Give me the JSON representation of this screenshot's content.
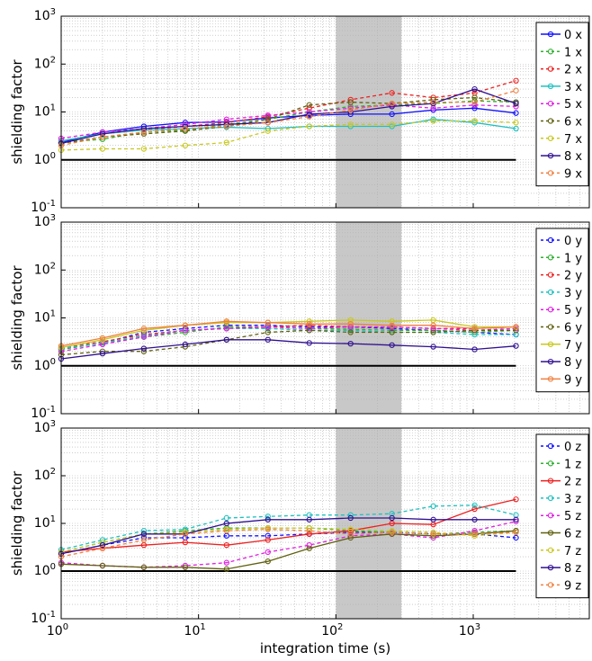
{
  "chart_data": [
    {
      "type": "line",
      "xscale": "log",
      "yscale": "log",
      "xlim": [
        1,
        7000
      ],
      "ylim": [
        0.1,
        1000
      ],
      "ylabel": "shielding factor",
      "xlabel": "",
      "grid": true,
      "legend_position": "right",
      "shaded_region": [
        100,
        300
      ],
      "reference_line": 1,
      "x": [
        1,
        2,
        4,
        8,
        16,
        32,
        64,
        128,
        256,
        512,
        1024,
        2048
      ],
      "series": [
        {
          "name": "0 x",
          "color": "#1010ff",
          "dash": false,
          "values": [
            2.3,
            3.8,
            5.0,
            6.0,
            6.2,
            7.5,
            8.5,
            9.0,
            9.0,
            11.0,
            12.0,
            9.5
          ]
        },
        {
          "name": "1 x",
          "color": "#30b030",
          "dash": true,
          "values": [
            2.3,
            2.7,
            3.8,
            4.2,
            5.5,
            7.0,
            10.0,
            13.0,
            14.0,
            15.0,
            17.0,
            16.0
          ]
        },
        {
          "name": "2 x",
          "color": "#ee2020",
          "dash": true,
          "values": [
            2.5,
            3.5,
            4.2,
            5.0,
            6.0,
            8.0,
            12.0,
            18.0,
            25.0,
            20.0,
            25.0,
            45.0
          ]
        },
        {
          "name": "3 x",
          "color": "#20c0c0",
          "dash": false,
          "values": [
            2.5,
            3.5,
            4.2,
            4.5,
            4.8,
            4.5,
            5.0,
            5.0,
            5.0,
            7.0,
            6.0,
            4.5
          ]
        },
        {
          "name": "5 x",
          "color": "#e020e0",
          "dash": true,
          "values": [
            2.8,
            3.8,
            4.5,
            5.5,
            7.0,
            8.5,
            10.0,
            12.0,
            14.0,
            12.0,
            14.0,
            13.0
          ]
        },
        {
          "name": "6 x",
          "color": "#606010",
          "dash": true,
          "values": [
            2.2,
            3.0,
            3.5,
            4.0,
            5.0,
            7.0,
            14.0,
            16.0,
            15.0,
            18.0,
            20.0,
            16.0
          ]
        },
        {
          "name": "7 x",
          "color": "#c8c820",
          "dash": true,
          "values": [
            1.6,
            1.7,
            1.7,
            2.0,
            2.3,
            4.0,
            5.0,
            5.5,
            5.5,
            6.5,
            6.5,
            6.0
          ]
        },
        {
          "name": "8 x",
          "color": "#301090",
          "dash": false,
          "values": [
            2.2,
            3.5,
            4.5,
            5.0,
            5.5,
            6.0,
            9.0,
            10.0,
            13.0,
            15.0,
            30.0,
            15.0
          ]
        },
        {
          "name": "9 x",
          "color": "#f08040",
          "dash": true,
          "values": [
            2.0,
            3.0,
            3.8,
            4.5,
            5.0,
            6.0,
            8.0,
            11.0,
            15.0,
            16.0,
            16.0,
            28.0
          ]
        }
      ]
    },
    {
      "type": "line",
      "xscale": "log",
      "yscale": "log",
      "xlim": [
        1,
        7000
      ],
      "ylim": [
        0.1,
        1000
      ],
      "ylabel": "shielding factor",
      "xlabel": "",
      "grid": true,
      "legend_position": "right",
      "shaded_region": [
        100,
        300
      ],
      "reference_line": 1,
      "x": [
        1,
        2,
        4,
        8,
        16,
        32,
        64,
        128,
        256,
        512,
        1024,
        2048
      ],
      "series": [
        {
          "name": "0 y",
          "color": "#1010ff",
          "dash": true,
          "values": [
            2.2,
            3.0,
            5.0,
            6.0,
            7.0,
            7.0,
            6.5,
            6.5,
            6.0,
            5.5,
            5.0,
            4.5
          ]
        },
        {
          "name": "1 y",
          "color": "#30b030",
          "dash": true,
          "values": [
            2.2,
            3.0,
            4.0,
            5.0,
            6.5,
            6.5,
            6.0,
            5.8,
            5.5,
            5.5,
            5.0,
            5.5
          ]
        },
        {
          "name": "2 y",
          "color": "#ee2020",
          "dash": true,
          "values": [
            2.4,
            3.2,
            4.5,
            5.5,
            6.0,
            6.5,
            7.0,
            6.5,
            6.5,
            6.0,
            6.0,
            6.5
          ]
        },
        {
          "name": "3 y",
          "color": "#20c0c0",
          "dash": true,
          "values": [
            2.3,
            3.0,
            4.2,
            5.5,
            6.0,
            6.0,
            5.5,
            5.5,
            5.0,
            5.0,
            4.5,
            4.5
          ]
        },
        {
          "name": "5 y",
          "color": "#e020e0",
          "dash": true,
          "values": [
            2.0,
            2.8,
            4.0,
            5.5,
            6.0,
            6.5,
            6.0,
            6.5,
            6.5,
            6.0,
            5.5,
            6.0
          ]
        },
        {
          "name": "6 y",
          "color": "#606010",
          "dash": true,
          "values": [
            1.7,
            2.0,
            2.0,
            2.5,
            3.5,
            5.0,
            5.5,
            5.0,
            5.0,
            5.0,
            5.5,
            5.5
          ]
        },
        {
          "name": "7 y",
          "color": "#c8c820",
          "dash": false,
          "values": [
            2.4,
            3.5,
            5.5,
            7.0,
            8.0,
            8.0,
            8.5,
            9.0,
            8.5,
            9.0,
            6.5,
            6.5
          ]
        },
        {
          "name": "8 y",
          "color": "#301090",
          "dash": false,
          "values": [
            1.4,
            1.8,
            2.3,
            2.8,
            3.5,
            3.5,
            3.0,
            2.9,
            2.7,
            2.5,
            2.2,
            2.6
          ]
        },
        {
          "name": "9 y",
          "color": "#f08040",
          "dash": false,
          "values": [
            2.6,
            3.8,
            6.0,
            7.0,
            8.5,
            8.0,
            7.5,
            7.5,
            7.0,
            7.0,
            6.0,
            6.5
          ]
        }
      ]
    },
    {
      "type": "line",
      "xscale": "log",
      "yscale": "log",
      "xlim": [
        1,
        7000
      ],
      "ylim": [
        0.1,
        1000
      ],
      "ylabel": "shielding factor",
      "xlabel": "integration time (s)",
      "grid": true,
      "legend_position": "right",
      "shaded_region": [
        100,
        300
      ],
      "reference_line": 1,
      "x": [
        1,
        2,
        4,
        8,
        16,
        32,
        64,
        128,
        256,
        512,
        1024,
        2048
      ],
      "series": [
        {
          "name": "0 z",
          "color": "#1010ff",
          "dash": true,
          "values": [
            2.3,
            3.5,
            5.0,
            5.0,
            5.5,
            5.5,
            6.0,
            6.5,
            6.5,
            6.0,
            6.0,
            5.0
          ]
        },
        {
          "name": "1 z",
          "color": "#30b030",
          "dash": true,
          "values": [
            2.5,
            4.0,
            6.0,
            7.0,
            8.0,
            8.0,
            8.0,
            7.0,
            6.5,
            6.0,
            6.5,
            7.0
          ]
        },
        {
          "name": "2 z",
          "color": "#ee2020",
          "dash": false,
          "values": [
            2.5,
            3.0,
            3.5,
            4.0,
            3.5,
            4.5,
            6.0,
            7.0,
            10.0,
            9.5,
            20.0,
            32.0
          ]
        },
        {
          "name": "3 z",
          "color": "#20c0c0",
          "dash": true,
          "values": [
            2.8,
            4.5,
            7.0,
            7.5,
            13.0,
            14.0,
            15.0,
            15.0,
            16.0,
            23.0,
            24.0,
            15.0
          ]
        },
        {
          "name": "5 z",
          "color": "#e020e0",
          "dash": true,
          "values": [
            1.5,
            1.3,
            1.2,
            1.3,
            1.5,
            2.5,
            3.5,
            5.5,
            6.0,
            5.0,
            7.0,
            11.0
          ]
        },
        {
          "name": "6 z",
          "color": "#606010",
          "dash": false,
          "values": [
            1.4,
            1.3,
            1.2,
            1.2,
            1.1,
            1.6,
            3.0,
            5.0,
            6.0,
            5.5,
            6.0,
            7.0
          ]
        },
        {
          "name": "7 z",
          "color": "#c8c820",
          "dash": true,
          "values": [
            2.5,
            4.0,
            6.0,
            6.5,
            7.5,
            8.0,
            8.0,
            7.5,
            7.0,
            6.5,
            5.5,
            6.5
          ]
        },
        {
          "name": "8 z",
          "color": "#301090",
          "dash": false,
          "values": [
            2.3,
            3.5,
            6.0,
            6.0,
            10.0,
            12.0,
            12.0,
            13.0,
            13.0,
            12.0,
            12.0,
            12.0
          ]
        },
        {
          "name": "9 z",
          "color": "#f08040",
          "dash": true,
          "values": [
            2.0,
            3.0,
            4.5,
            6.0,
            7.0,
            7.5,
            7.0,
            6.0,
            6.5,
            6.0,
            6.0,
            6.5
          ]
        }
      ]
    }
  ]
}
